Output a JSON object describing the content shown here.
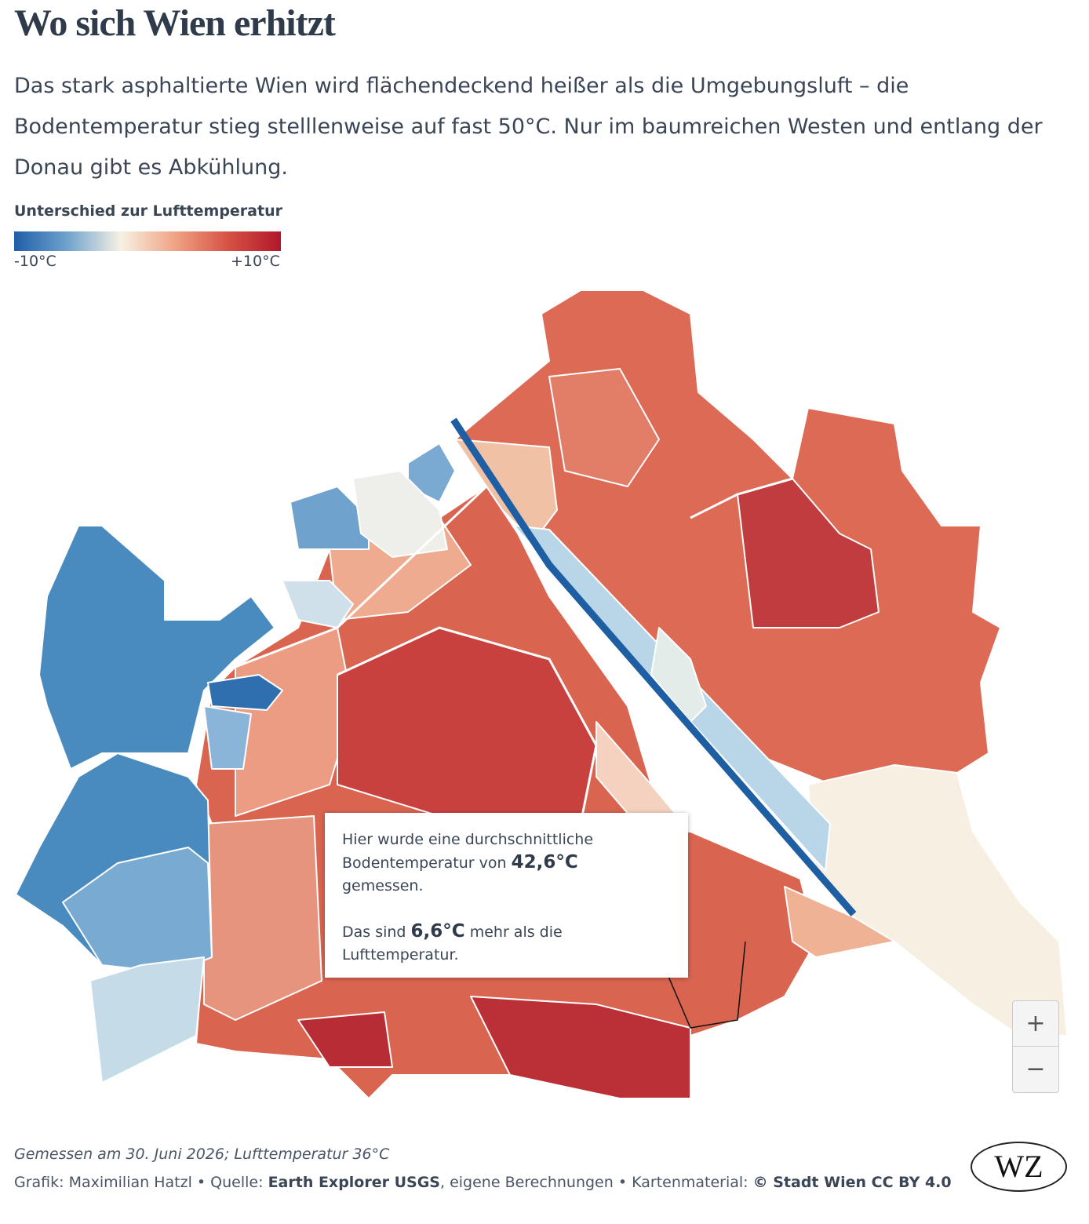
{
  "header": {
    "title": "Wo sich Wien erhitzt",
    "subtitle": "Das stark asphaltierte Wien wird flächendeckend heißer als die Umgebungsluft – die Bodentemperatur stieg stelllenweise auf fast 50°C. Nur im baumreichen Westen und entlang der Donau gibt es Abkühlung."
  },
  "legend": {
    "title": "Unterschied zur Lufttemperatur",
    "min_label": "-10°C",
    "max_label": "+10°C"
  },
  "tooltip": {
    "lines": [
      "Hier wurde eine durchschnittliche",
      "Bodentemperatur von",
      "42,6°C",
      "gemessen.",
      "Das sind",
      "6,6°C",
      "mehr als die",
      "Lufttemperatur."
    ]
  },
  "zoom": {
    "in": "+",
    "out": "−"
  },
  "footer": {
    "note": "Gemessen am 30. Juni 2026; Lufttemperatur 36°C",
    "credits": [
      "Grafik: Maximilian Hatzl",
      "•",
      "Quelle:",
      "Earth Explorer USGS",
      ", eigene Berechnungen",
      "•",
      "Kartenmaterial:",
      "© Stadt Wien CC BY 4.0"
    ]
  },
  "logo": "WZ"
}
